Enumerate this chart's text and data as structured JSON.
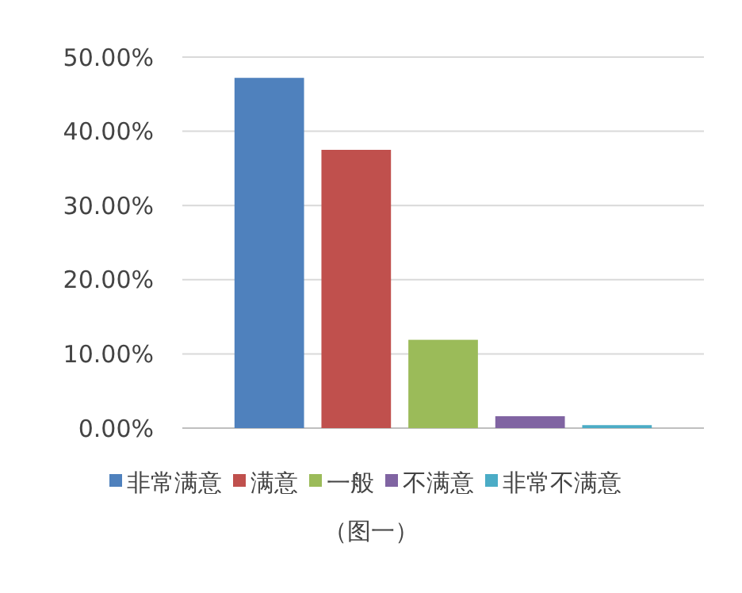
{
  "chart_data": {
    "type": "bar",
    "categories": [
      null
    ],
    "series": [
      {
        "name": "非常满意",
        "color": "#4f81bd",
        "values": [
          47.2
        ]
      },
      {
        "name": "满意",
        "color": "#c0504d",
        "values": [
          37.5
        ]
      },
      {
        "name": "一般",
        "color": "#9bbb59",
        "values": [
          11.9
        ]
      },
      {
        "name": "不满意",
        "color": "#8064a2",
        "values": [
          1.6
        ]
      },
      {
        "name": "非常不满意",
        "color": "#4bacc6",
        "values": [
          0.4
        ]
      }
    ],
    "ylim": [
      0,
      50
    ],
    "yticks": [
      {
        "value": 0,
        "label": "0.00%"
      },
      {
        "value": 10,
        "label": "10.00%"
      },
      {
        "value": 20,
        "label": "20.00%"
      },
      {
        "value": 30,
        "label": "30.00%"
      },
      {
        "value": 40,
        "label": "40.00%"
      },
      {
        "value": 50,
        "label": "50.00%"
      }
    ],
    "grid": "y",
    "legend": "bottom",
    "annotations": [
      "（图一）"
    ]
  }
}
